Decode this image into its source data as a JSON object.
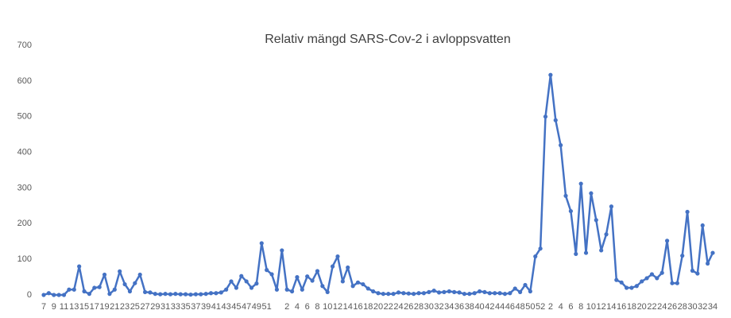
{
  "chart_data": {
    "type": "line",
    "title": "Relativ mängd SARS-Cov-2 i avloppsvatten",
    "categories": [
      "7",
      null,
      "9",
      null,
      "11",
      null,
      "13",
      null,
      "15",
      null,
      "17",
      null,
      "19",
      null,
      "21",
      null,
      "23",
      null,
      "25",
      null,
      "27",
      null,
      "29",
      null,
      "31",
      null,
      "33",
      null,
      "35",
      null,
      "37",
      null,
      "39",
      null,
      "41",
      null,
      "43",
      null,
      "45",
      null,
      "47",
      null,
      "49",
      null,
      "51",
      null,
      null,
      null,
      "2",
      null,
      "4",
      null,
      "6",
      null,
      "8",
      null,
      "10",
      null,
      "12",
      null,
      "14",
      null,
      "16",
      null,
      "18",
      null,
      "20",
      null,
      "22",
      null,
      "24",
      null,
      "26",
      null,
      "28",
      null,
      "30",
      null,
      "32",
      null,
      "34",
      null,
      "36",
      null,
      "38",
      null,
      "40",
      null,
      "42",
      null,
      "44",
      null,
      "46",
      null,
      "48",
      null,
      "50",
      null,
      "52",
      null,
      "2",
      null,
      "4",
      null,
      "6",
      null,
      "8",
      null,
      "10",
      null,
      "12",
      null,
      "14",
      null,
      "16",
      null,
      "18",
      null,
      "20",
      null,
      "22",
      null,
      "24",
      null,
      "26",
      null,
      "28",
      null,
      "30",
      null,
      "32",
      null,
      "34"
    ],
    "series": [
      {
        "color": "#4472c4",
        "values": [
          0,
          5,
          0,
          0,
          0,
          15,
          15,
          80,
          10,
          3,
          20,
          22,
          57,
          3,
          15,
          66,
          30,
          10,
          33,
          57,
          8,
          7,
          3,
          2,
          3,
          2,
          3,
          2,
          2,
          1,
          2,
          2,
          3,
          5,
          5,
          7,
          15,
          38,
          20,
          53,
          38,
          20,
          32,
          145,
          70,
          58,
          15,
          125,
          15,
          10,
          50,
          15,
          52,
          40,
          67,
          25,
          8,
          80,
          108,
          38,
          77,
          25,
          35,
          30,
          18,
          10,
          5,
          3,
          3,
          3,
          7,
          5,
          4,
          3,
          5,
          5,
          8,
          12,
          7,
          8,
          10,
          8,
          7,
          3,
          3,
          5,
          10,
          8,
          5,
          5,
          5,
          3,
          5,
          18,
          8,
          28,
          10,
          108,
          130,
          500,
          617,
          490,
          420,
          278,
          235,
          115,
          312,
          118,
          285,
          210,
          125,
          170,
          248,
          42,
          35,
          20,
          20,
          25,
          38,
          47,
          58,
          47,
          62,
          152,
          33,
          33,
          110,
          233,
          68,
          60,
          195,
          88,
          118
        ]
      }
    ],
    "ylim": [
      0,
      700
    ],
    "yticks": [
      0,
      100,
      200,
      300,
      400,
      500,
      600,
      700
    ],
    "grid": false
  }
}
